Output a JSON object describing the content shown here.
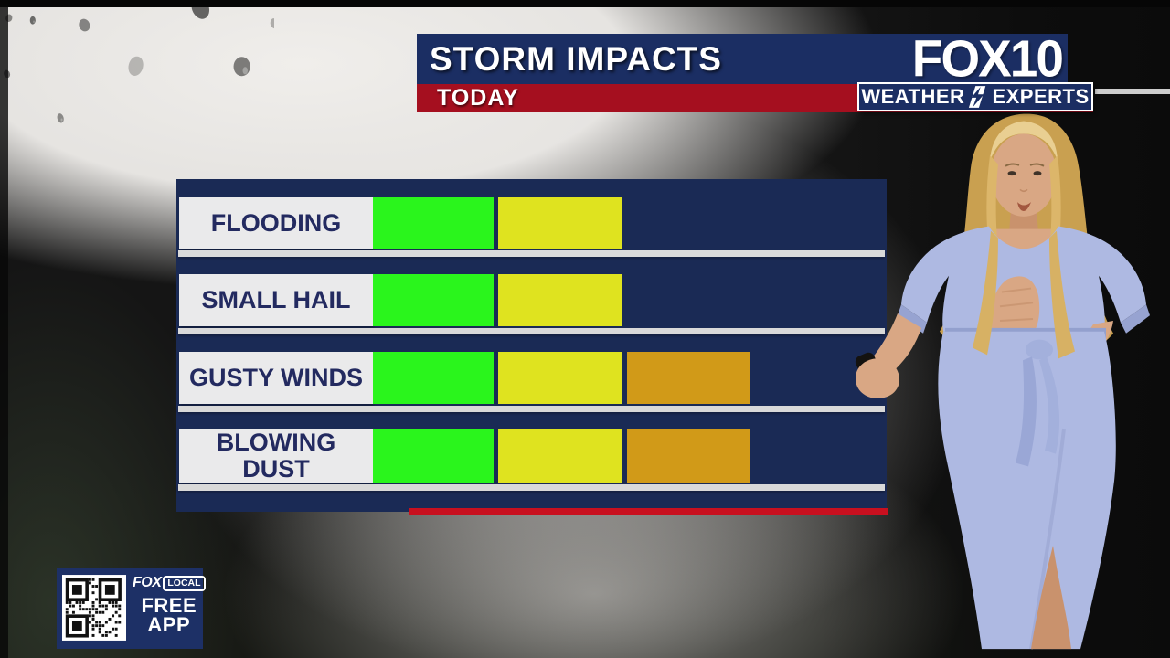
{
  "header": {
    "title": "STORM IMPACTS",
    "timeframe": "TODAY",
    "station_logo": "FOX10",
    "badge": {
      "left": "WEATHER",
      "right": "EXPERTS"
    }
  },
  "chart_data": {
    "type": "bar",
    "orientation": "horizontal",
    "title": "STORM IMPACTS",
    "subtitle": "TODAY",
    "categories": [
      "FLOODING",
      "SMALL HAIL",
      "GUSTY WINDS",
      "BLOWING DUST"
    ],
    "values": [
      2,
      2,
      3,
      3
    ],
    "value_note": "number of filled severity segments per impact; no numeric axis labels shown on screen",
    "segments": [
      [
        "green",
        "yellow"
      ],
      [
        "green",
        "yellow"
      ],
      [
        "green",
        "yellow",
        "orange"
      ],
      [
        "green",
        "yellow",
        "orange"
      ]
    ],
    "colors": {
      "green": "#2af51c",
      "yellow": "#dfe31f",
      "orange": "#d19a18"
    },
    "grid": false,
    "legend": null
  },
  "promo": {
    "brand": "FOX",
    "brand_suffix": "LOCAL",
    "line1": "FREE",
    "line2": "APP"
  },
  "colors": {
    "header_navy": "#1b2e63",
    "panel_navy": "#1a2a55",
    "header_red": "#a50f1f",
    "underline_red": "#c8101f",
    "label_box": "#eaeaeb",
    "label_text": "#232a60"
  }
}
